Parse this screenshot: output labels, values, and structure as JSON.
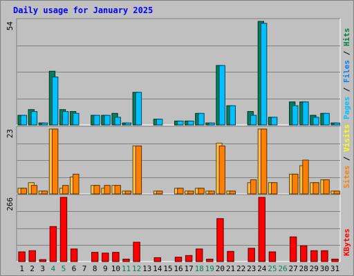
{
  "chart_data": {
    "type": "bar",
    "title": "Daily usage for January 2025",
    "categories": [
      "1",
      "2",
      "3",
      "4",
      "5",
      "6",
      "7",
      "8",
      "9",
      "10",
      "11",
      "12",
      "13",
      "14",
      "15",
      "16",
      "17",
      "18",
      "19",
      "20",
      "21",
      "22",
      "23",
      "24",
      "25",
      "26",
      "27",
      "28",
      "29",
      "30",
      "31"
    ],
    "weekend_days": [
      "4",
      "5",
      "11",
      "12",
      "18",
      "19",
      "25",
      "26"
    ],
    "panels": [
      {
        "name": "hits-files-pages",
        "ymax_label": "54",
        "ymax": 54,
        "right_label": [
          {
            "text": "Pages",
            "color": "#00c0ff"
          },
          {
            "text": " / ",
            "color": "#000000"
          },
          {
            "text": "Files",
            "color": "#0080ff"
          },
          {
            "text": " / ",
            "color": "#000000"
          },
          {
            "text": "Hits",
            "color": "#008040"
          }
        ],
        "series": [
          {
            "name": "Hits",
            "color": "#00805c",
            "values": [
              5,
              8,
              1,
              28,
              8,
              7,
              0,
              5,
              5,
              6,
              1,
              17,
              0,
              3,
              0,
              2,
              2,
              6,
              1,
              31,
              10,
              0,
              7,
              54,
              4,
              0,
              12,
              12,
              5,
              6,
              1
            ]
          },
          {
            "name": "Files",
            "color": "#00c0ff",
            "values": [
              5,
              7,
              1,
              25,
              7,
              6,
              0,
              5,
              5,
              4,
              1,
              17,
              0,
              3,
              0,
              2,
              2,
              6,
              1,
              31,
              10,
              0,
              5,
              53,
              4,
              0,
              10,
              12,
              4,
              6,
              1
            ]
          }
        ]
      },
      {
        "name": "sites-visits",
        "ymax_label": "23",
        "ymax": 23,
        "right_label": [
          {
            "text": "Sites",
            "color": "#ff8000"
          },
          {
            "text": " / ",
            "color": "#000000"
          },
          {
            "text": "Visits",
            "color": "#ffff00"
          }
        ],
        "series": [
          {
            "name": "Visits",
            "color": "#ffc040",
            "values": [
              2,
              4,
              1,
              23,
              2,
              6,
              0,
              3,
              2,
              3,
              1,
              17,
              0,
              1,
              0,
              2,
              1,
              2,
              1,
              18,
              1,
              0,
              4,
              23,
              4,
              0,
              7,
              10,
              4,
              5,
              1
            ]
          },
          {
            "name": "Sites",
            "color": "#ff8000",
            "values": [
              2,
              3,
              1,
              23,
              3,
              7,
              0,
              3,
              3,
              3,
              1,
              17,
              0,
              1,
              0,
              2,
              1,
              2,
              1,
              17,
              1,
              0,
              5,
              23,
              4,
              0,
              7,
              12,
              4,
              5,
              1
            ]
          }
        ]
      },
      {
        "name": "kbytes",
        "ymax_label": "266",
        "ymax": 266,
        "right_label": [
          {
            "text": "KBytes",
            "color": "#ff0000"
          }
        ],
        "series": [
          {
            "name": "KBytes",
            "color": "#ff0000",
            "values": [
              40,
              45,
              8,
              145,
              266,
              52,
              0,
              38,
              35,
              38,
              10,
              80,
              0,
              16,
              0,
              18,
              25,
              52,
              10,
              178,
              42,
              0,
              55,
              266,
              40,
              0,
              102,
              65,
              45,
              45,
              10
            ]
          }
        ]
      }
    ]
  }
}
